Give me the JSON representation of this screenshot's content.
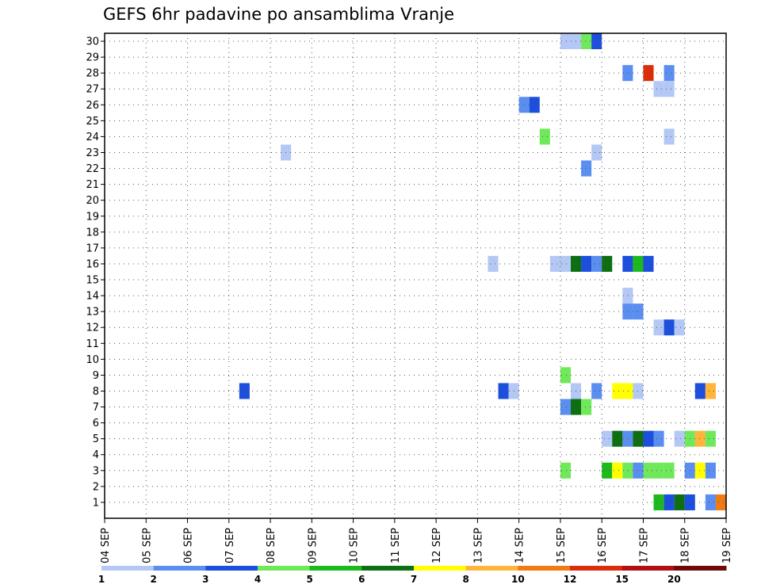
{
  "chart_data": {
    "type": "heatmap",
    "title": "GEFS 6hr padavine po ansamblima Vranje",
    "x_tick_labels": [
      "04 SEP",
      "05 SEP",
      "06 SEP",
      "07 SEP",
      "08 SEP",
      "09 SEP",
      "10 SEP",
      "11 SEP",
      "12 SEP",
      "13 SEP",
      "14 SEP",
      "15 SEP",
      "16 SEP",
      "17 SEP",
      "18 SEP",
      "19 SEP"
    ],
    "x_steps_per_day": 4,
    "ylim": [
      0,
      30
    ],
    "y_tick_labels": [
      "1",
      "2",
      "3",
      "4",
      "5",
      "6",
      "7",
      "8",
      "9",
      "10",
      "11",
      "12",
      "13",
      "14",
      "15",
      "16",
      "17",
      "18",
      "19",
      "20",
      "21",
      "22",
      "23",
      "24",
      "25",
      "26",
      "27",
      "28",
      "29",
      "30"
    ],
    "grid": true,
    "colorbar": {
      "labels": [
        "1",
        "2",
        "3",
        "4",
        "5",
        "6",
        "7",
        "8",
        "10",
        "12",
        "15",
        "20"
      ],
      "colors": [
        "#b4c8f5",
        "#5a8ef0",
        "#1c4fdc",
        "#6fe85a",
        "#1cba1c",
        "#0e6e12",
        "#ffff00",
        "#ffb43a",
        "#f07a14",
        "#dc2c0a",
        "#b01010",
        "#6e0a0a"
      ]
    },
    "cells": [
      {
        "member": 30,
        "step": 44,
        "level": 1
      },
      {
        "member": 30,
        "step": 45,
        "level": 1
      },
      {
        "member": 30,
        "step": 46,
        "level": 4
      },
      {
        "member": 30,
        "step": 47,
        "level": 3
      },
      {
        "member": 28,
        "step": 50,
        "level": 2
      },
      {
        "member": 28,
        "step": 52,
        "level": 10
      },
      {
        "member": 28,
        "step": 54,
        "level": 2
      },
      {
        "member": 27,
        "step": 53,
        "level": 1
      },
      {
        "member": 27,
        "step": 54,
        "level": 1
      },
      {
        "member": 26,
        "step": 40,
        "level": 2
      },
      {
        "member": 26,
        "step": 41,
        "level": 3
      },
      {
        "member": 24,
        "step": 42,
        "level": 4
      },
      {
        "member": 24,
        "step": 54,
        "level": 1
      },
      {
        "member": 23,
        "step": 17,
        "level": 1
      },
      {
        "member": 23,
        "step": 47,
        "level": 1
      },
      {
        "member": 22,
        "step": 46,
        "level": 2
      },
      {
        "member": 16,
        "step": 37,
        "level": 1
      },
      {
        "member": 16,
        "step": 43,
        "level": 1
      },
      {
        "member": 16,
        "step": 44,
        "level": 1
      },
      {
        "member": 16,
        "step": 45,
        "level": 6
      },
      {
        "member": 16,
        "step": 46,
        "level": 3
      },
      {
        "member": 16,
        "step": 47,
        "level": 2
      },
      {
        "member": 16,
        "step": 48,
        "level": 6
      },
      {
        "member": 16,
        "step": 50,
        "level": 3
      },
      {
        "member": 16,
        "step": 51,
        "level": 5
      },
      {
        "member": 16,
        "step": 52,
        "level": 3
      },
      {
        "member": 14,
        "step": 50,
        "level": 1
      },
      {
        "member": 13,
        "step": 50,
        "level": 2
      },
      {
        "member": 13,
        "step": 51,
        "level": 2
      },
      {
        "member": 12,
        "step": 53,
        "level": 1
      },
      {
        "member": 12,
        "step": 54,
        "level": 3
      },
      {
        "member": 12,
        "step": 55,
        "level": 1
      },
      {
        "member": 9,
        "step": 44,
        "level": 4
      },
      {
        "member": 8,
        "step": 13,
        "level": 3
      },
      {
        "member": 8,
        "step": 38,
        "level": 3
      },
      {
        "member": 8,
        "step": 39,
        "level": 1
      },
      {
        "member": 8,
        "step": 45,
        "level": 1
      },
      {
        "member": 8,
        "step": 47,
        "level": 2
      },
      {
        "member": 8,
        "step": 49,
        "level": 7
      },
      {
        "member": 8,
        "step": 50,
        "level": 7
      },
      {
        "member": 8,
        "step": 51,
        "level": 1
      },
      {
        "member": 8,
        "step": 57,
        "level": 3
      },
      {
        "member": 8,
        "step": 58,
        "level": 8
      },
      {
        "member": 7,
        "step": 44,
        "level": 2
      },
      {
        "member": 7,
        "step": 45,
        "level": 6
      },
      {
        "member": 7,
        "step": 46,
        "level": 4
      },
      {
        "member": 5,
        "step": 48,
        "level": 1
      },
      {
        "member": 5,
        "step": 49,
        "level": 6
      },
      {
        "member": 5,
        "step": 50,
        "level": 2
      },
      {
        "member": 5,
        "step": 51,
        "level": 6
      },
      {
        "member": 5,
        "step": 52,
        "level": 3
      },
      {
        "member": 5,
        "step": 53,
        "level": 2
      },
      {
        "member": 5,
        "step": 55,
        "level": 1
      },
      {
        "member": 5,
        "step": 56,
        "level": 4
      },
      {
        "member": 5,
        "step": 57,
        "level": 8
      },
      {
        "member": 5,
        "step": 58,
        "level": 4
      },
      {
        "member": 3,
        "step": 44,
        "level": 4
      },
      {
        "member": 3,
        "step": 48,
        "level": 5
      },
      {
        "member": 3,
        "step": 49,
        "level": 7
      },
      {
        "member": 3,
        "step": 50,
        "level": 4
      },
      {
        "member": 3,
        "step": 51,
        "level": 2
      },
      {
        "member": 3,
        "step": 52,
        "level": 4
      },
      {
        "member": 3,
        "step": 53,
        "level": 4
      },
      {
        "member": 3,
        "step": 54,
        "level": 4
      },
      {
        "member": 3,
        "step": 56,
        "level": 2
      },
      {
        "member": 3,
        "step": 57,
        "level": 7
      },
      {
        "member": 3,
        "step": 58,
        "level": 2
      },
      {
        "member": 1,
        "step": 53,
        "level": 5
      },
      {
        "member": 1,
        "step": 54,
        "level": 3
      },
      {
        "member": 1,
        "step": 55,
        "level": 6
      },
      {
        "member": 1,
        "step": 56,
        "level": 3
      },
      {
        "member": 1,
        "step": 58,
        "level": 2
      },
      {
        "member": 1,
        "step": 59,
        "level": 9
      }
    ]
  }
}
